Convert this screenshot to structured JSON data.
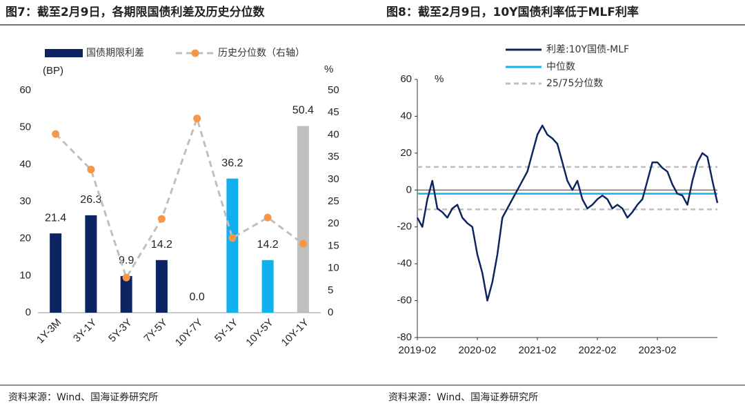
{
  "chart_data": [
    {
      "type": "bar",
      "title": "图7：截至2月9日，各期限国债利差及历史分位数",
      "source": "资料来源：Wind、国海证券研究所",
      "ylabel": "(BP)",
      "y2label": "%",
      "categories": [
        "1Y-3M",
        "3Y-1Y",
        "5Y-3Y",
        "7Y-5Y",
        "10Y-7Y",
        "5Y-1Y",
        "10Y-5Y",
        "10Y-1Y"
      ],
      "series": [
        {
          "name": "国债期限利差",
          "color": "#0c2461",
          "colors": [
            "#0c2461",
            "#0c2461",
            "#0c2461",
            "#0c2461",
            "#0c2461",
            "#12b0ec",
            "#12b0ec",
            "#bfbfbf"
          ],
          "values": [
            21.4,
            26.3,
            9.9,
            14.2,
            0.0,
            36.2,
            14.2,
            50.4
          ],
          "value_labels": [
            "21.4",
            "26.3",
            "9.9",
            "14.2",
            "0.0",
            "36.2",
            "14.2",
            "50.4"
          ]
        },
        {
          "name": "历史分位数（右轴）",
          "color": "#f79646",
          "line_color": "#bfbfbf",
          "axis": "y2",
          "values": [
            40.2,
            32.2,
            7.9,
            21.1,
            43.7,
            16.8,
            21.4,
            15.5
          ]
        }
      ],
      "ylim": [
        0,
        60
      ],
      "yticks": [
        0,
        10,
        20,
        30,
        40,
        50,
        60
      ],
      "y2lim": [
        0,
        50
      ],
      "y2ticks": [
        0,
        5,
        10,
        15,
        20,
        25,
        30,
        35,
        40,
        45,
        50
      ]
    },
    {
      "type": "line",
      "title": "图8：截至2月9日，10Y国债利率低于MLF利率",
      "source": "资料来源：Wind、国海证券研究所",
      "ylabel": "%",
      "x": [
        "2019-02",
        "2019-03",
        "2019-04",
        "2019-05",
        "2019-06",
        "2019-07",
        "2019-08",
        "2019-09",
        "2019-10",
        "2019-11",
        "2019-12",
        "2020-01",
        "2020-02",
        "2020-03",
        "2020-04",
        "2020-05",
        "2020-06",
        "2020-07",
        "2020-08",
        "2020-09",
        "2020-10",
        "2020-11",
        "2020-12",
        "2021-01",
        "2021-02",
        "2021-03",
        "2021-04",
        "2021-05",
        "2021-06",
        "2021-07",
        "2021-08",
        "2021-09",
        "2021-10",
        "2021-11",
        "2021-12",
        "2022-01",
        "2022-02",
        "2022-03",
        "2022-04",
        "2022-05",
        "2022-06",
        "2022-07",
        "2022-08",
        "2022-09",
        "2022-10",
        "2022-11",
        "2022-12",
        "2023-01",
        "2023-02",
        "2023-03",
        "2023-04",
        "2023-05",
        "2023-06",
        "2023-07",
        "2023-08",
        "2023-09",
        "2023-10",
        "2023-11",
        "2023-12",
        "2024-01",
        "2024-02"
      ],
      "series": [
        {
          "name": "利差:10Y国债-MLF",
          "color": "#0c2461",
          "values": [
            -15,
            -20,
            -5,
            5,
            -10,
            -12,
            -15,
            -10,
            -8,
            -15,
            -18,
            -20,
            -35,
            -45,
            -60,
            -50,
            -35,
            -15,
            -10,
            -5,
            0,
            5,
            10,
            20,
            30,
            35,
            30,
            28,
            25,
            15,
            5,
            0,
            5,
            -5,
            -10,
            -8,
            -5,
            -3,
            -5,
            -10,
            -8,
            -10,
            -15,
            -12,
            -8,
            -5,
            5,
            15,
            15,
            12,
            10,
            3,
            -2,
            -3,
            -8,
            5,
            15,
            20,
            18,
            5,
            -7
          ]
        }
      ],
      "reference_lines": [
        {
          "name": "中位数",
          "color": "#12b0ec",
          "values": [
            -2
          ]
        },
        {
          "name": "25/75分位数",
          "color": "#bfbfbf",
          "values": [
            12.5,
            -10.5
          ]
        }
      ],
      "xlim": [
        "2019-02",
        "2024-02"
      ],
      "xticks": [
        "2019-02",
        "2020-02",
        "2021-02",
        "2022-02",
        "2023-02"
      ],
      "ylim": [
        -80,
        60
      ],
      "yticks": [
        -80,
        -60,
        -40,
        -20,
        0,
        20,
        40,
        60
      ]
    }
  ]
}
